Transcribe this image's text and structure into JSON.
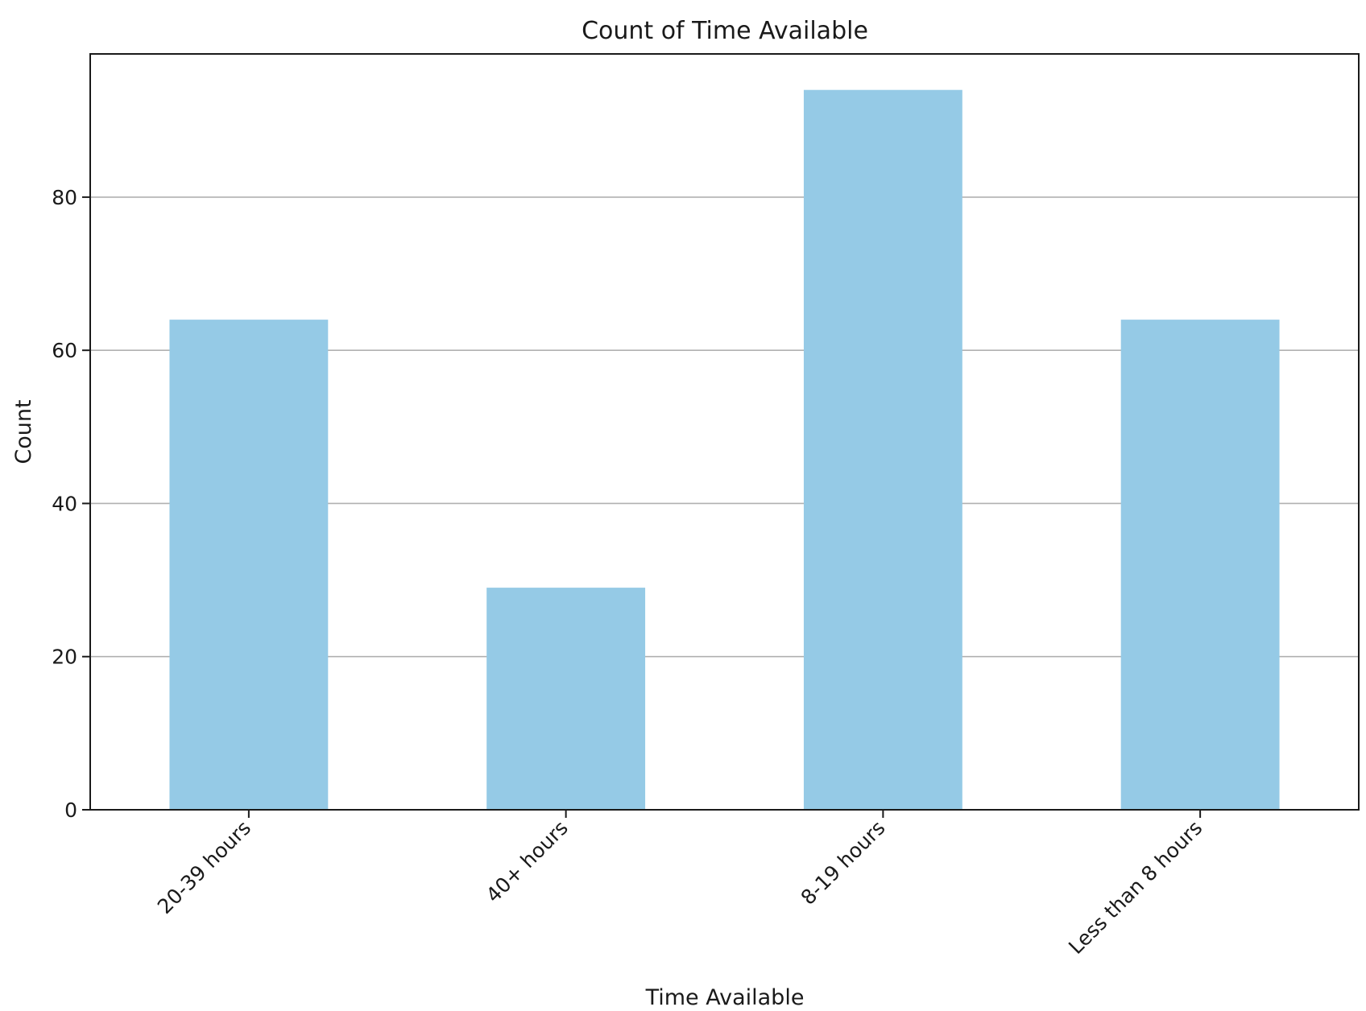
{
  "chart_data": {
    "type": "bar",
    "title": "Count of Time Available",
    "xlabel": "Time Available",
    "ylabel": "Count",
    "categories": [
      "20-39 hours",
      "40+ hours",
      "8-19 hours",
      "Less than 8 hours"
    ],
    "values": [
      64,
      29,
      94,
      64
    ],
    "ylim": [
      0,
      98.7
    ],
    "yticks": [
      0,
      20,
      40,
      60,
      80
    ],
    "ytick_labels": [
      "0",
      "20",
      "40",
      "60",
      "80"
    ],
    "grid": "y-major",
    "legend": "none",
    "bar_color": "#95cae6",
    "xtick_rotation": 45
  }
}
